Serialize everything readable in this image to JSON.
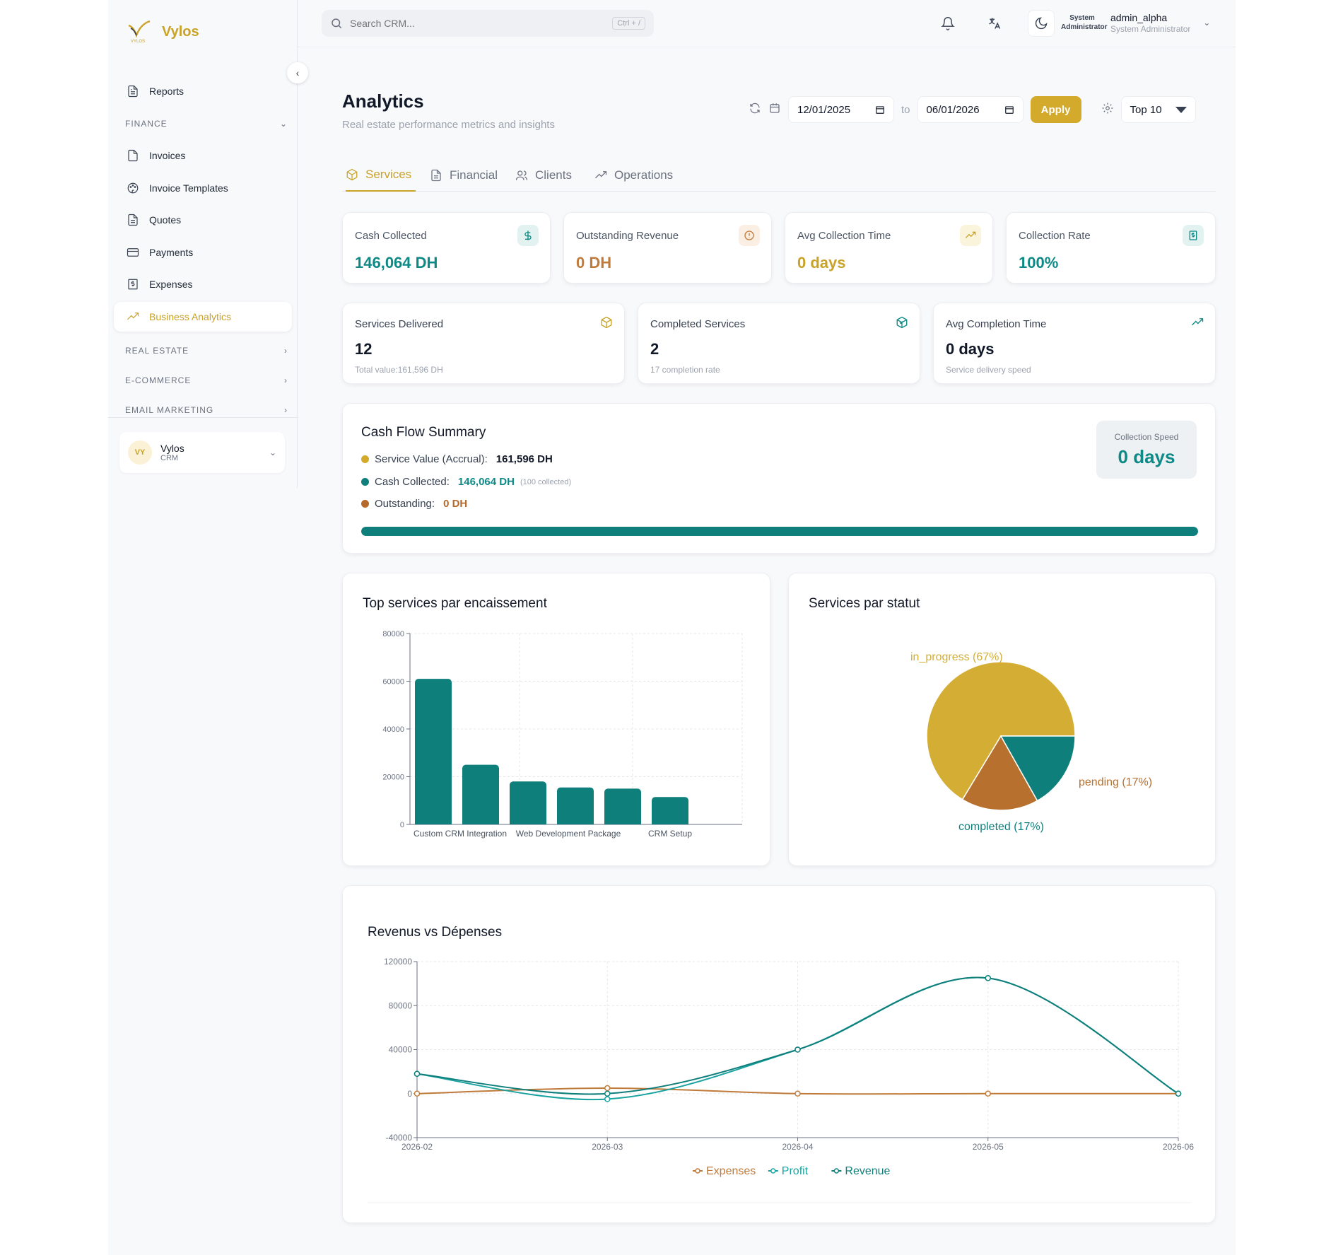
{
  "brand": {
    "name": "Vylos",
    "logo_caption": "VYLOS",
    "color": "#c9a227"
  },
  "sidebar": {
    "items": [
      {
        "label": "Reports",
        "icon": "file-text-icon"
      },
      {
        "label": "Invoices",
        "icon": "file-icon"
      },
      {
        "label": "Invoice Templates",
        "icon": "palette-icon"
      },
      {
        "label": "Quotes",
        "icon": "file-text-icon"
      },
      {
        "label": "Payments",
        "icon": "credit-card-icon"
      },
      {
        "label": "Expenses",
        "icon": "receipt-icon"
      },
      {
        "label": "Business Analytics",
        "icon": "trending-up-icon",
        "active": true
      }
    ],
    "sections": [
      "FINANCE",
      "REAL ESTATE",
      "E-COMMERCE",
      "EMAIL MARKETING"
    ],
    "org": {
      "initials": "VY",
      "name": "Vylos",
      "type": "CRM"
    }
  },
  "topbar": {
    "search_placeholder": "Search CRM...",
    "search_shortcut": "Ctrl + /",
    "user": {
      "role_badge": "System Administrator",
      "name": "admin_alpha",
      "role": "System Administrator"
    }
  },
  "header": {
    "title": "Analytics",
    "subtitle": "Real estate performance metrics and insights"
  },
  "filters": {
    "date_from": "12/01/2025",
    "to_label": "to",
    "date_to": "06/01/2026",
    "apply_label": "Apply",
    "top_select": "Top 10"
  },
  "tabs": [
    {
      "label": "Services",
      "icon": "package-icon",
      "active": true
    },
    {
      "label": "Financial",
      "icon": "file-text-icon"
    },
    {
      "label": "Clients",
      "icon": "users-icon"
    },
    {
      "label": "Operations",
      "icon": "trending-up-icon"
    }
  ],
  "kpis": [
    {
      "label": "Cash Collected",
      "value": "146,064 DH",
      "color": "#0d8a86",
      "icon": "dollar-icon"
    },
    {
      "label": "Outstanding Revenue",
      "value": "0 DH",
      "color": "#c07a3a",
      "icon": "alert-circle-icon"
    },
    {
      "label": "Avg Collection Time",
      "value": "0 days",
      "color": "#c9a227",
      "icon": "trending-up-icon"
    },
    {
      "label": "Collection Rate",
      "value": "100%",
      "color": "#0d8a86",
      "icon": "receipt-icon"
    }
  ],
  "service_kpis": [
    {
      "label": "Services Delivered",
      "value": "12",
      "sub": "Total value:161,596 DH",
      "icon": "package-icon",
      "icon_color": "#c9a227"
    },
    {
      "label": "Completed Services",
      "value": "2",
      "sub": "17 completion rate",
      "icon": "package-check-icon",
      "icon_color": "#0d8a86"
    },
    {
      "label": "Avg Completion Time",
      "value": "0 days",
      "sub": "Service delivery speed",
      "icon": "trending-up-icon",
      "icon_color": "#0d8a86"
    }
  ],
  "cashflow": {
    "title": "Cash Flow Summary",
    "rows": [
      {
        "label": "Service Value (Accrual):",
        "value": "161,596 DH",
        "color": "#d4aa2c",
        "value_color": "#111827",
        "note": ""
      },
      {
        "label": "Cash Collected:",
        "value": "146,064 DH",
        "color": "#0f7f7c",
        "value_color": "#0d8a86",
        "note": "(100 collected)"
      },
      {
        "label": "Outstanding:",
        "value": "0 DH",
        "color": "#b5692a",
        "value_color": "#b5692a",
        "note": ""
      }
    ],
    "speed_label": "Collection Speed",
    "speed_value": "0 days",
    "progress": 1.0
  },
  "chart_data": [
    {
      "type": "bar",
      "title": "Top services par encaissement",
      "categories": [
        "Custom CRM Integration",
        "",
        "",
        "Web Development Package",
        "",
        "CRM Setup"
      ],
      "values": [
        61000,
        25000,
        18000,
        15500,
        15000,
        11500
      ],
      "ylim": [
        0,
        80000
      ],
      "yticks": [
        0,
        20000,
        40000,
        60000,
        80000
      ],
      "xlabels": [
        "Custom CRM Integration",
        "Web Development Package",
        "CRM Setup"
      ],
      "color": "#0f7f7c",
      "grid": true
    },
    {
      "type": "pie",
      "title": "Services par statut",
      "slices": [
        {
          "label": "in_progress (67%)",
          "value": 67,
          "color": "#d4ae34"
        },
        {
          "label": "pending (17%)",
          "value": 17,
          "color": "#b8702e"
        },
        {
          "label": "completed (17%)",
          "value": 17,
          "color": "#0f7f7c"
        }
      ]
    },
    {
      "type": "line",
      "title": "Revenus vs Dépenses",
      "x": [
        "2026-02",
        "2026-03",
        "2026-04",
        "2026-05",
        "2026-06"
      ],
      "ylim": [
        -40000,
        120000
      ],
      "yticks": [
        -40000,
        0,
        40000,
        80000,
        120000
      ],
      "series": [
        {
          "name": "Expenses",
          "values": [
            0,
            5000,
            0,
            0,
            0
          ],
          "color": "#c07a3a"
        },
        {
          "name": "Profit",
          "values": [
            18000,
            -5000,
            40000,
            105000,
            0
          ],
          "color": "#1aa3a0"
        },
        {
          "name": "Revenue",
          "values": [
            18000,
            0,
            40000,
            105000,
            0
          ],
          "color": "#0f7f7c"
        }
      ],
      "legend": "bottom",
      "grid": true
    }
  ]
}
